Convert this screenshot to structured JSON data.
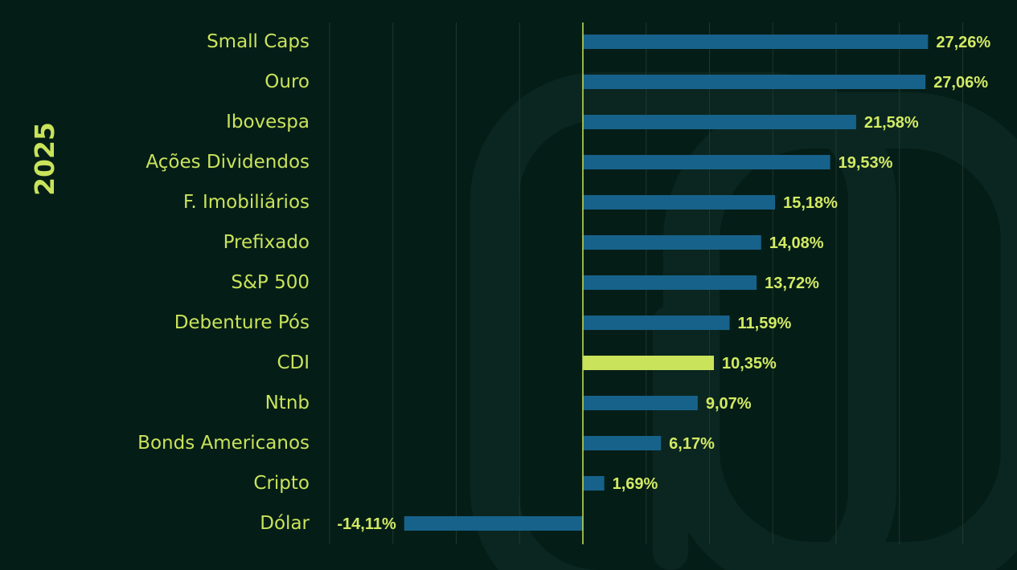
{
  "chart_data": {
    "type": "bar",
    "orientation": "horizontal",
    "title": "2025",
    "xlabel": "",
    "ylabel": "",
    "xlim": [
      -20,
      30
    ],
    "grid": true,
    "categories": [
      "Small Caps",
      "Ouro",
      "Ibovespa",
      "Ações Dividendos",
      "F. Imobiliários",
      "Prefixado",
      "S&P 500",
      "Debenture Pós",
      "CDI",
      "Ntnb",
      "Bonds Americanos",
      "Cripto",
      "Dólar"
    ],
    "values": [
      27.26,
      27.06,
      21.58,
      19.53,
      15.18,
      14.08,
      13.72,
      11.59,
      10.35,
      9.07,
      6.17,
      1.69,
      -14.11
    ],
    "value_labels": [
      "27,26%",
      "27,06%",
      "21,58%",
      "19,53%",
      "15,18%",
      "14,08%",
      "13,72%",
      "11,59%",
      "10,35%",
      "9,07%",
      "6,17%",
      "1,69%",
      "-14,11%"
    ],
    "highlight": "CDI",
    "colors": {
      "background": "#051d17",
      "watermark": "#0b2620",
      "bar": "#17628a",
      "highlight_bar": "#c9e35b",
      "zero_line": "#c9e35b",
      "grid": "#20372f",
      "label": "#c9e35b",
      "value_label": "#d2ea63"
    }
  }
}
